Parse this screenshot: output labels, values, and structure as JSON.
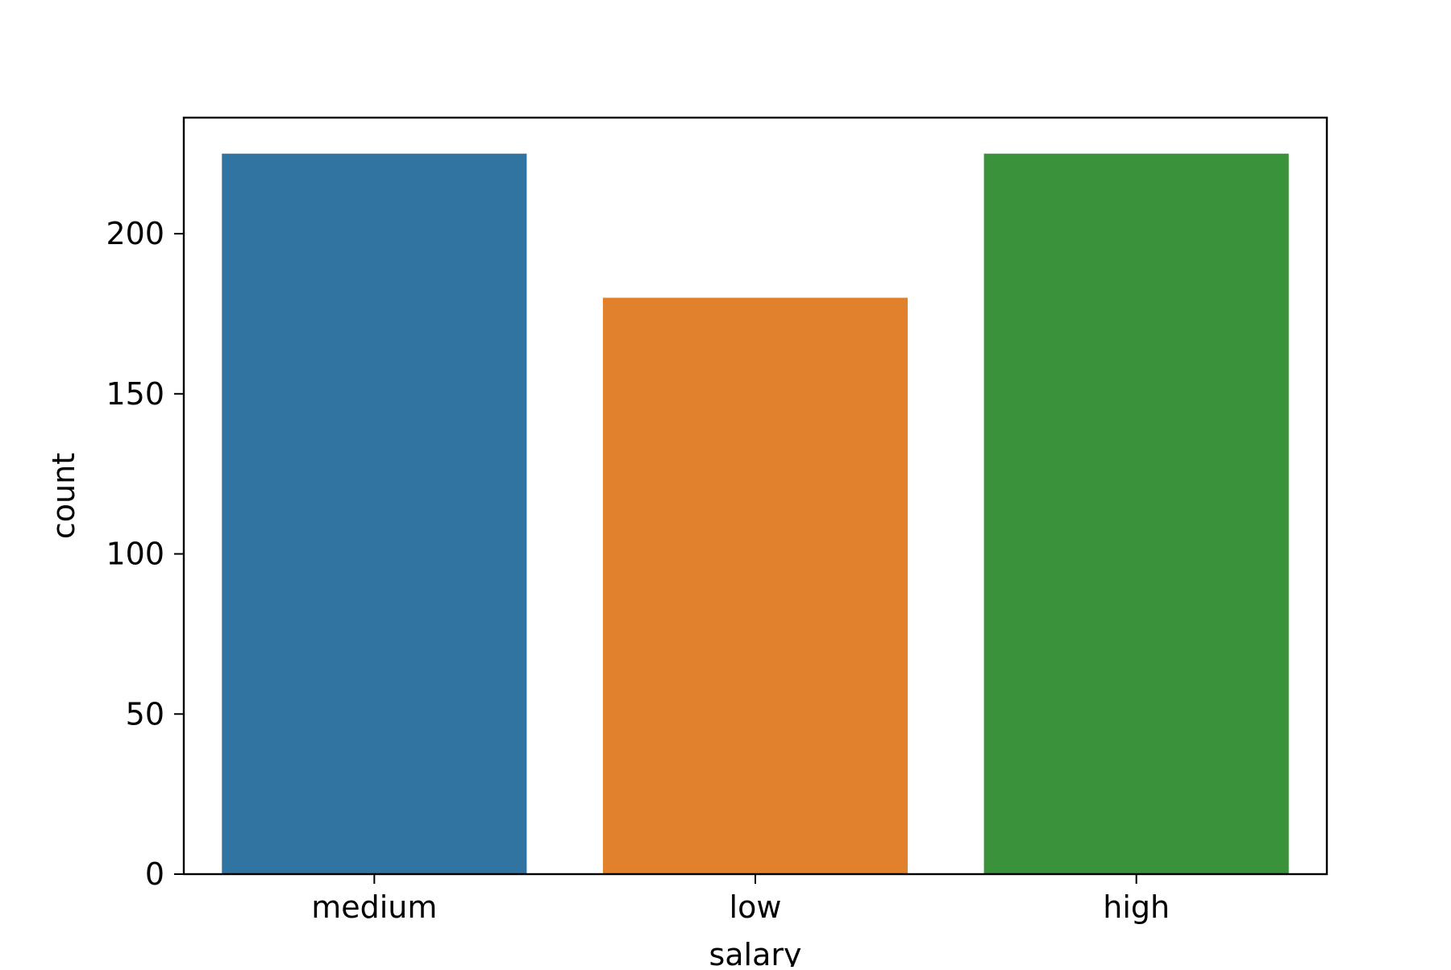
{
  "chart_data": {
    "type": "bar",
    "categories": [
      "medium",
      "low",
      "high"
    ],
    "values": [
      225,
      180,
      225
    ],
    "colors": [
      "#3274a1",
      "#e1812c",
      "#3a923a"
    ],
    "xlabel": "salary",
    "ylabel": "count",
    "ylim": [
      0,
      236.25
    ],
    "yticks": [
      0,
      50,
      100,
      150,
      200
    ],
    "ytick_labels": [
      "0",
      "50",
      "100",
      "150",
      "200"
    ],
    "grid": false,
    "legend": "none"
  }
}
